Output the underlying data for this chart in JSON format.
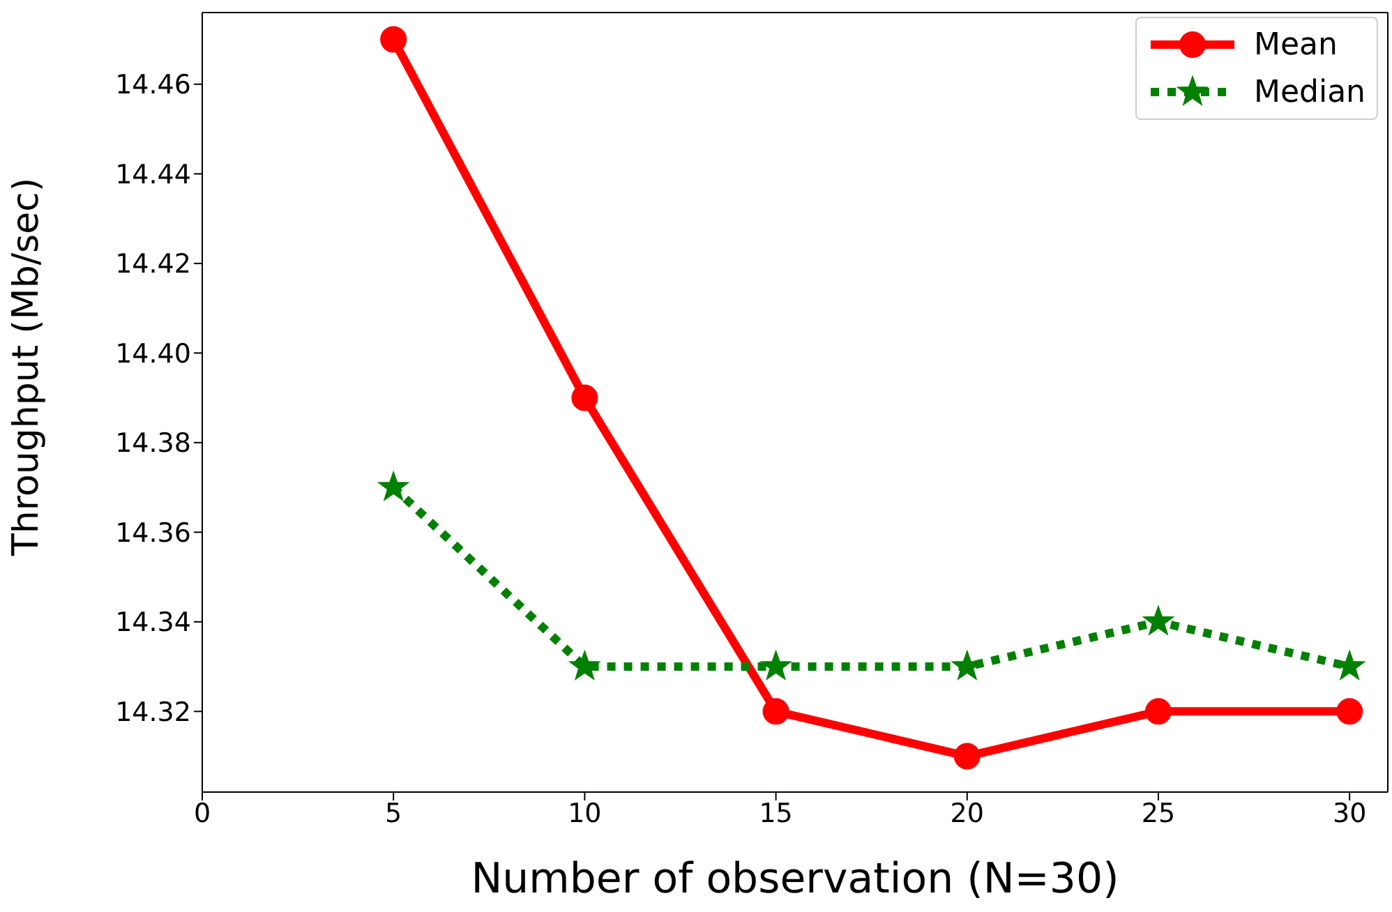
{
  "chart_data": {
    "type": "line",
    "xlabel": "Number of observation (N=30)",
    "ylabel": "Throughput (Mb/sec)",
    "x": [
      5,
      10,
      15,
      20,
      25,
      30
    ],
    "series": [
      {
        "name": "Mean",
        "color": "#ff0000",
        "marker": "circle",
        "line_style": "solid",
        "values": [
          14.47,
          14.39,
          14.32,
          14.31,
          14.32,
          14.32
        ]
      },
      {
        "name": "Median",
        "color": "#008000",
        "marker": "star",
        "line_style": "dotted",
        "values": [
          14.37,
          14.33,
          14.33,
          14.33,
          14.34,
          14.33
        ]
      }
    ],
    "xlim": [
      0,
      31
    ],
    "xticks": [
      0,
      5,
      10,
      15,
      20,
      25,
      30
    ],
    "ylim": [
      14.302,
      14.476
    ],
    "yticks": [
      14.32,
      14.34,
      14.36,
      14.38,
      {
        "value": 14.4,
        "label": "14.40"
      },
      14.42,
      14.44,
      14.46
    ],
    "grid": false,
    "legend": "top right"
  }
}
